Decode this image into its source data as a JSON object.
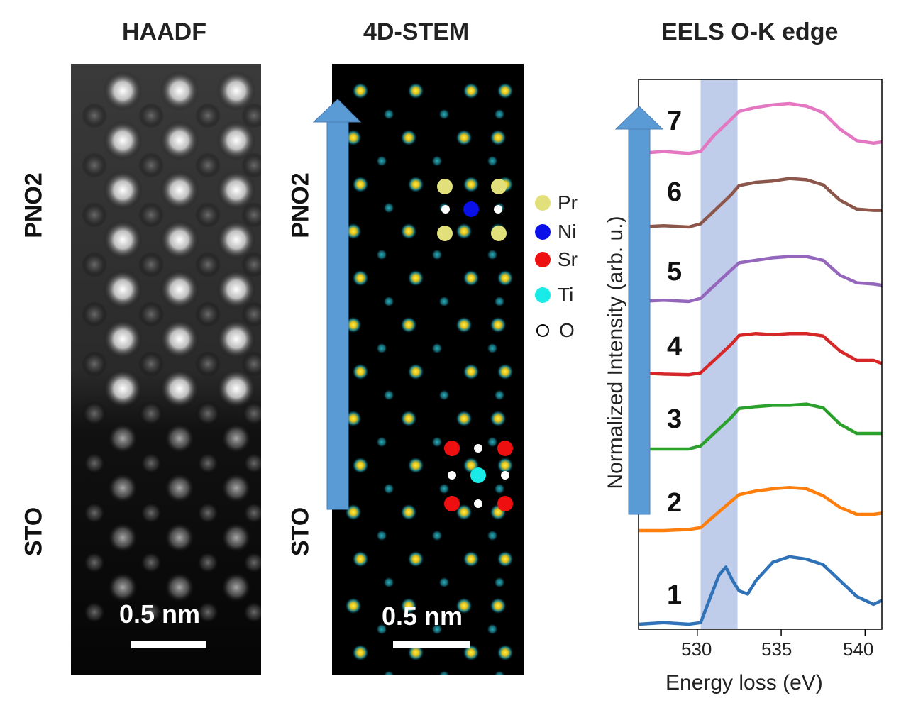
{
  "panels": {
    "haadf": {
      "title": "HAADF",
      "top_label": "PNO2",
      "bottom_label": "STO",
      "scale_text": "0.5 nm"
    },
    "stem": {
      "title": "4D-STEM",
      "top_label": "PNO2",
      "bottom_label": "STO",
      "scale_text": "0.5 nm"
    },
    "eels": {
      "title": "EELS O-K edge"
    }
  },
  "legend": [
    {
      "label": "Pr",
      "color": "#e2e07a"
    },
    {
      "label": "Ni",
      "color": "#0a10e8"
    },
    {
      "label": "Sr",
      "color": "#ee1010"
    },
    {
      "label": "Ti",
      "color": "#19ece8"
    },
    {
      "label": "O",
      "color": "#ffffff"
    }
  ],
  "chart_data": {
    "type": "line",
    "title": "EELS O-K edge",
    "xlabel": "Energy loss (eV)",
    "ylabel": "Normalized Intensity (arb. u.)",
    "xlim": [
      526.5,
      541
    ],
    "xticks": [
      530,
      535,
      540
    ],
    "highlight_band": [
      530.2,
      532.4
    ],
    "series": [
      {
        "name": "1",
        "color": "#2f72b8",
        "x": [
          526.5,
          528,
          529.5,
          530.2,
          530.8,
          531.3,
          531.7,
          532.1,
          532.5,
          533.0,
          533.5,
          534.5,
          535.5,
          536.5,
          537.5,
          538.5,
          539.5,
          540.5,
          541
        ],
        "y": [
          0.0,
          0.02,
          0.0,
          0.02,
          0.35,
          0.62,
          0.72,
          0.55,
          0.42,
          0.38,
          0.55,
          0.78,
          0.85,
          0.82,
          0.75,
          0.55,
          0.35,
          0.25,
          0.3
        ]
      },
      {
        "name": "2",
        "color": "#ff7f0e",
        "x": [
          526.5,
          528,
          529.5,
          530.2,
          531.0,
          532.0,
          532.5,
          533.5,
          534.5,
          535.5,
          536.5,
          537.5,
          538.5,
          539.5,
          540.5,
          541
        ],
        "y": [
          0.0,
          0.0,
          0.02,
          0.05,
          0.25,
          0.5,
          0.62,
          0.68,
          0.72,
          0.74,
          0.72,
          0.6,
          0.4,
          0.28,
          0.28,
          0.3
        ]
      },
      {
        "name": "3",
        "color": "#2ca02c",
        "x": [
          526.5,
          528,
          529.5,
          530.2,
          531.0,
          532.0,
          532.5,
          533.5,
          534.5,
          535.5,
          536.5,
          537.5,
          538.5,
          539.5,
          540.5,
          541
        ],
        "y": [
          0.0,
          0.0,
          0.0,
          0.05,
          0.25,
          0.5,
          0.65,
          0.68,
          0.7,
          0.7,
          0.72,
          0.66,
          0.4,
          0.25,
          0.25,
          0.25
        ]
      },
      {
        "name": "4",
        "color": "#d62728",
        "x": [
          526.5,
          528,
          529.5,
          530.2,
          531.0,
          532.0,
          532.5,
          533.5,
          534.5,
          535.5,
          536.5,
          537.5,
          538.5,
          539.5,
          540.5,
          541
        ],
        "y": [
          0.05,
          0.03,
          0.02,
          0.05,
          0.25,
          0.5,
          0.65,
          0.68,
          0.66,
          0.68,
          0.68,
          0.64,
          0.4,
          0.25,
          0.25,
          0.2
        ]
      },
      {
        "name": "5",
        "color": "#9467bd",
        "x": [
          526.5,
          528,
          529.5,
          530.2,
          531.0,
          532.0,
          532.5,
          533.5,
          534.5,
          535.5,
          536.5,
          537.5,
          538.5,
          539.5,
          540.5,
          541
        ],
        "y": [
          0.0,
          0.02,
          0.0,
          0.05,
          0.25,
          0.5,
          0.62,
          0.66,
          0.7,
          0.72,
          0.72,
          0.66,
          0.42,
          0.3,
          0.28,
          0.26
        ]
      },
      {
        "name": "6",
        "color": "#8c564b",
        "x": [
          526.5,
          528,
          529.5,
          530.2,
          531.0,
          532.0,
          532.5,
          533.5,
          534.5,
          535.5,
          536.5,
          537.5,
          538.5,
          539.5,
          540.5,
          541
        ],
        "y": [
          0.0,
          0.02,
          0.0,
          0.05,
          0.25,
          0.5,
          0.65,
          0.7,
          0.72,
          0.76,
          0.74,
          0.66,
          0.42,
          0.28,
          0.26,
          0.26
        ]
      },
      {
        "name": "7",
        "color": "#e377c2",
        "x": [
          526.5,
          528,
          529.5,
          530.2,
          531.0,
          532.0,
          532.5,
          533.5,
          534.5,
          535.5,
          536.5,
          537.5,
          538.5,
          539.5,
          540.5,
          541
        ],
        "y": [
          0.02,
          0.05,
          0.02,
          0.05,
          0.3,
          0.55,
          0.68,
          0.74,
          0.78,
          0.8,
          0.76,
          0.66,
          0.4,
          0.22,
          0.18,
          0.2
        ]
      }
    ]
  }
}
